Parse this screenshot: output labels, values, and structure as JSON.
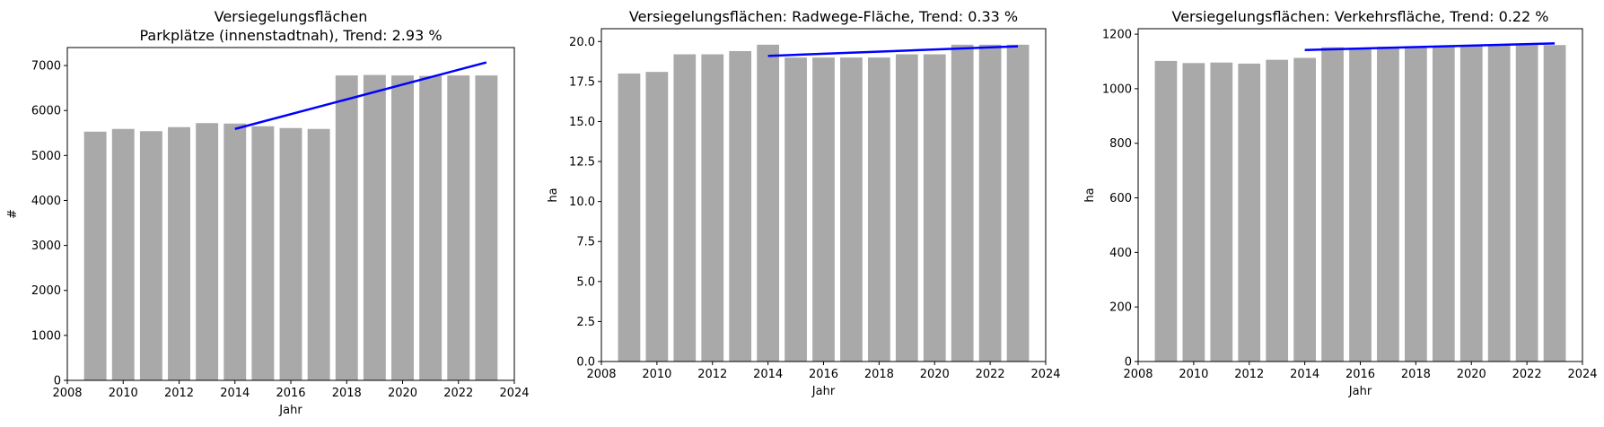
{
  "chart_data": [
    {
      "type": "bar",
      "title_lines": [
        "Versiegelungsflächen",
        "Parkplätze (innenstadtnah), Trend:  2.93 %"
      ],
      "xlabel": "Jahr",
      "ylabel": "#",
      "xlim": [
        2008,
        2024
      ],
      "ylim": [
        0,
        7400
      ],
      "xticks": [
        2008,
        2010,
        2012,
        2014,
        2016,
        2018,
        2020,
        2022,
        2024
      ],
      "yticks": [
        0,
        1000,
        2000,
        3000,
        4000,
        5000,
        6000,
        7000
      ],
      "ytick_labels": [
        "0",
        "1000",
        "2000",
        "3000",
        "4000",
        "5000",
        "6000",
        "7000"
      ],
      "bar_color": "#a9a9a9",
      "trend_color": "#0000ff",
      "x": [
        2009,
        2010,
        2011,
        2012,
        2013,
        2014,
        2015,
        2016,
        2017,
        2018,
        2019,
        2020,
        2021,
        2022,
        2023
      ],
      "values": [
        5530,
        5590,
        5540,
        5630,
        5720,
        5710,
        5650,
        5610,
        5590,
        6780,
        6790,
        6780,
        6770,
        6780,
        6780
      ],
      "trend": {
        "x": [
          2014,
          2023
        ],
        "y": [
          5590,
          7070
        ]
      }
    },
    {
      "type": "bar",
      "title_lines": [
        "Versiegelungsflächen: Radwege-Fläche, Trend:  0.33 %"
      ],
      "xlabel": "Jahr",
      "ylabel": "ha",
      "xlim": [
        2008,
        2024
      ],
      "ylim": [
        0,
        20.8
      ],
      "xticks": [
        2008,
        2010,
        2012,
        2014,
        2016,
        2018,
        2020,
        2022,
        2024
      ],
      "yticks": [
        0,
        2.5,
        5,
        7.5,
        10,
        12.5,
        15,
        17.5,
        20
      ],
      "ytick_labels": [
        "0.0",
        "2.5",
        "5.0",
        "7.5",
        "10.0",
        "12.5",
        "15.0",
        "17.5",
        "20.0"
      ],
      "bar_color": "#a9a9a9",
      "trend_color": "#0000ff",
      "x": [
        2009,
        2010,
        2011,
        2012,
        2013,
        2014,
        2015,
        2016,
        2017,
        2018,
        2019,
        2020,
        2021,
        2022,
        2023
      ],
      "values": [
        18.0,
        18.1,
        19.2,
        19.2,
        19.4,
        19.8,
        19.0,
        19.0,
        19.0,
        19.0,
        19.2,
        19.2,
        19.8,
        19.8,
        19.8
      ],
      "trend": {
        "x": [
          2014,
          2023
        ],
        "y": [
          19.1,
          19.7
        ]
      }
    },
    {
      "type": "bar",
      "title_lines": [
        "Versiegelungsflächen: Verkehrsfläche, Trend:  0.22 %"
      ],
      "xlabel": "Jahr",
      "ylabel": "ha",
      "xlim": [
        2008,
        2024
      ],
      "ylim": [
        0,
        1220
      ],
      "xticks": [
        2008,
        2010,
        2012,
        2014,
        2016,
        2018,
        2020,
        2022,
        2024
      ],
      "yticks": [
        0,
        200,
        400,
        600,
        800,
        1000,
        1200
      ],
      "ytick_labels": [
        "0",
        "200",
        "400",
        "600",
        "800",
        "1000",
        "1200"
      ],
      "bar_color": "#a9a9a9",
      "trend_color": "#0000ff",
      "x": [
        2009,
        2010,
        2011,
        2012,
        2013,
        2014,
        2015,
        2016,
        2017,
        2018,
        2019,
        2020,
        2021,
        2022,
        2023
      ],
      "values": [
        1102,
        1094,
        1096,
        1092,
        1106,
        1113,
        1152,
        1150,
        1154,
        1155,
        1157,
        1158,
        1159,
        1160,
        1160
      ],
      "trend": {
        "x": [
          2014,
          2023
        ],
        "y": [
          1142,
          1166
        ]
      }
    }
  ]
}
